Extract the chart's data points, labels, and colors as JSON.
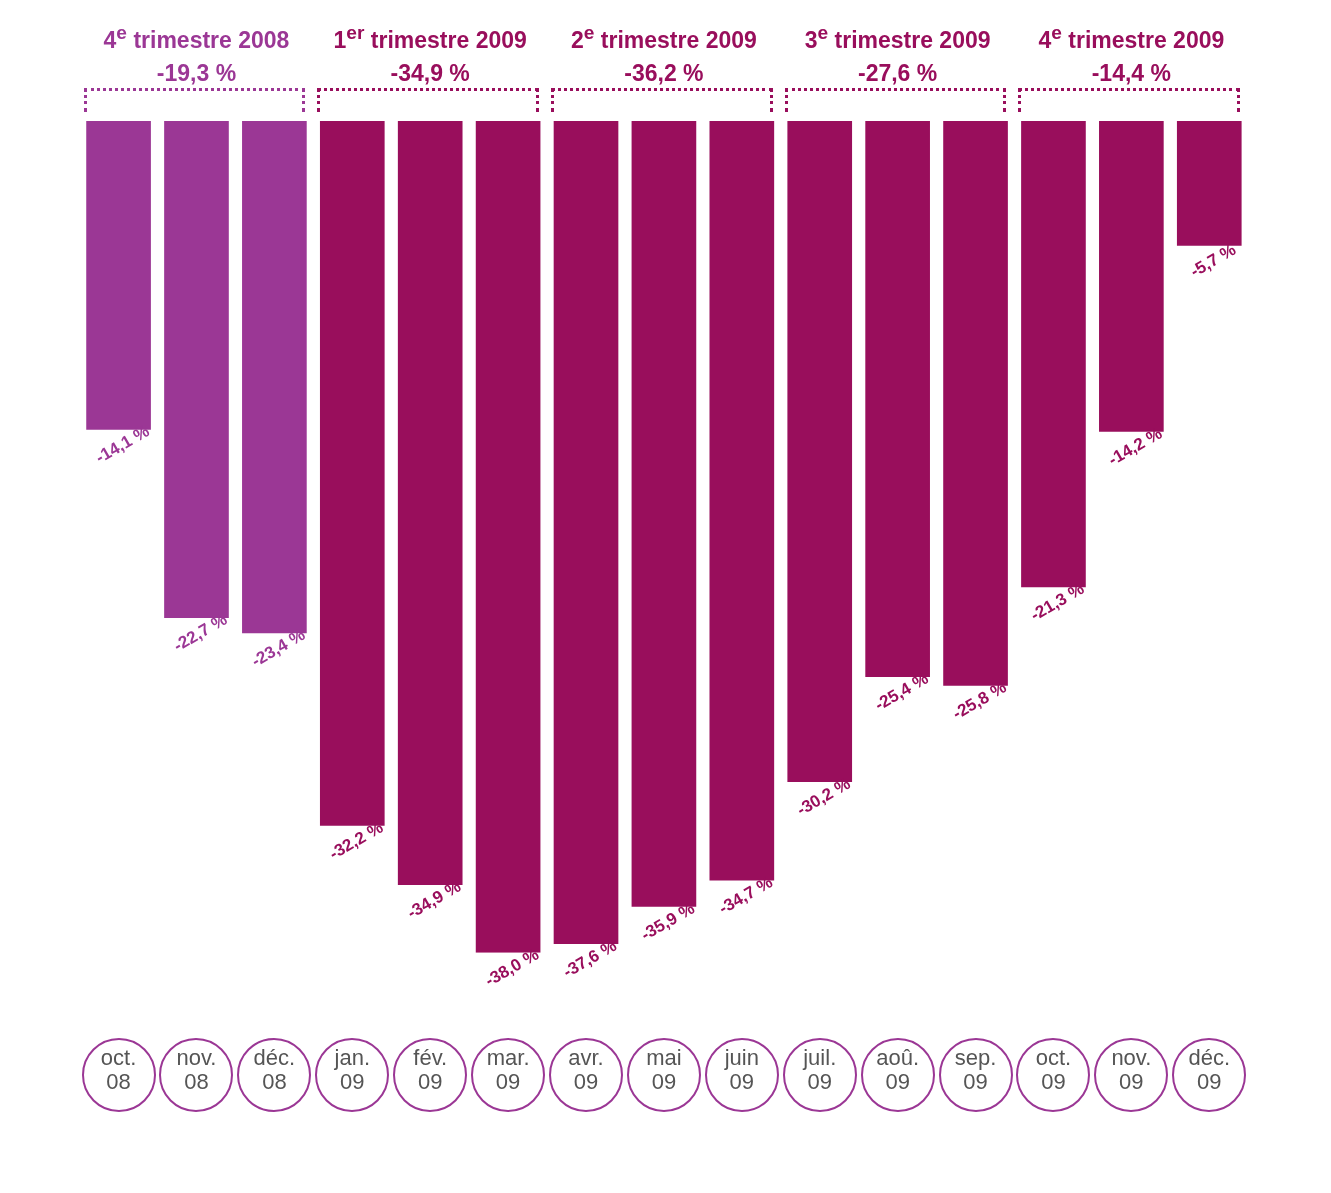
{
  "chart_data": {
    "type": "bar",
    "categories": [
      "oct. 08",
      "nov. 08",
      "déc. 08",
      "jan. 09",
      "fév. 09",
      "mar. 09",
      "avr. 09",
      "mai 09",
      "juin 09",
      "juil. 09",
      "aoû. 09",
      "sep. 09",
      "oct. 09",
      "nov. 09",
      "déc. 09"
    ],
    "values": [
      -14.1,
      -22.7,
      -23.4,
      -32.2,
      -34.9,
      -38.0,
      -37.6,
      -35.9,
      -34.7,
      -30.2,
      -25.4,
      -25.8,
      -21.3,
      -14.2,
      -5.7
    ],
    "value_labels": [
      "-14,1 %",
      "-22,7 %",
      "-23,4 %",
      "-32,2 %",
      "-34,9 %",
      "-38,0 %",
      "-37,6 %",
      "-35,9 %",
      "-34,7 %",
      "-30,2 %",
      "-25,4 %",
      "-25,8 %",
      "-21,3 %",
      "-14,2 %",
      "-5,7 %"
    ],
    "colors": [
      "#9b3795",
      "#9b3795",
      "#9b3795",
      "#990e5c",
      "#990e5c",
      "#990e5c",
      "#990e5c",
      "#990e5c",
      "#990e5c",
      "#990e5c",
      "#990e5c",
      "#990e5c",
      "#990e5c",
      "#990e5c",
      "#990e5c"
    ],
    "ylim": [
      -38,
      0
    ],
    "tick_labels": "x",
    "annotations": [
      "4$^{e}$ trimestre 2008\n-19,3 %",
      "1$^{er}$ trimestre 2009\n-34,9 %",
      "2$^{e}$ trimestre 2009\n-36,2 %",
      "3$^{e}$ trimestre 2009\n-27,6 %",
      "4$^{e}$ trimestre 2009\n-14,4 %"
    ]
  }
}
